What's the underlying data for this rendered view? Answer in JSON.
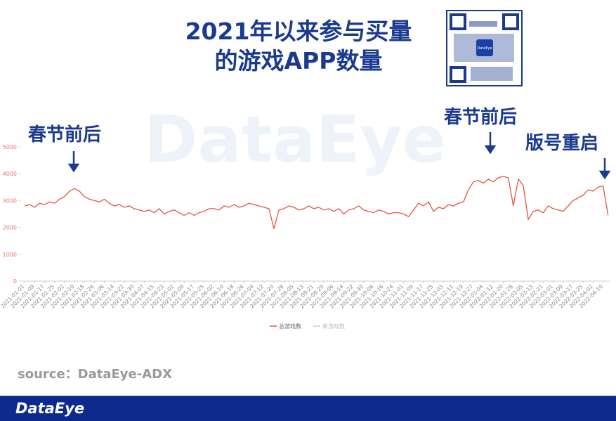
{
  "chart_data": {
    "type": "line",
    "title": [
      "2021年以来参与买量",
      "的游戏APP数量"
    ],
    "watermark": "DataEye",
    "annotations": [
      "春节前后",
      "春节前后",
      "版号重启"
    ],
    "source": "source：DataEye-ADX",
    "footer": "DataEye",
    "qr_label": "DataEye",
    "categories": [
      "2021-01-01",
      null,
      "2021-01-09",
      null,
      "2021-01-17",
      null,
      "2021-01-25",
      null,
      "2021-02-02",
      null,
      "2021-02-10",
      null,
      "2021-02-18",
      null,
      "2021-02-26",
      null,
      "2021-03-06",
      null,
      "2021-03-14",
      null,
      "2021-03-22",
      null,
      "2021-03-30",
      null,
      "2021-04-07",
      null,
      "2021-04-15",
      null,
      "2021-04-23",
      null,
      "2021-05-01",
      null,
      "2021-05-09",
      null,
      "2021-05-17",
      null,
      "2021-05-25",
      null,
      "2021-06-02",
      null,
      "2021-06-10",
      null,
      "2021-06-18",
      null,
      "2021-06-26",
      null,
      "2021-07-04",
      null,
      "2021-07-12",
      null,
      "2021-07-20",
      null,
      "2021-07-28",
      null,
      "2021-08-05",
      null,
      "2021-08-13",
      null,
      "2021-08-21",
      null,
      "2021-08-29",
      null,
      "2021-09-06",
      null,
      "2021-09-14",
      null,
      "2021-09-22",
      null,
      "2021-09-30",
      null,
      "2021-10-08",
      null,
      "2021-10-16",
      null,
      "2021-10-24",
      null,
      "2021-11-01",
      null,
      "2021-11-09",
      null,
      "2021-11-17",
      null,
      "2021-11-25",
      null,
      "2021-12-03",
      null,
      "2021-12-11",
      null,
      "2021-12-19",
      null,
      "2021-12-27",
      null,
      "2022-01-04",
      null,
      "2022-01-12",
      null,
      "2022-01-20",
      null,
      "2022-01-28",
      null,
      "2022-02-05",
      null,
      "2022-02-13",
      null,
      "2022-02-21",
      null,
      "2022-03-01",
      null,
      "2022-03-09",
      null,
      "2022-03-17",
      null,
      "2022-03-25",
      null,
      "2022-04-02",
      null,
      "2022-04-10",
      null
    ],
    "series": [
      {
        "name": "总游戏数",
        "color": "#e8553f",
        "values": [
          2800,
          2850,
          2750,
          2900,
          2850,
          2950,
          2900,
          3050,
          3150,
          3350,
          3450,
          3350,
          3150,
          3050,
          3000,
          2950,
          3050,
          2900,
          2800,
          2850,
          2750,
          2800,
          2700,
          2650,
          2600,
          2650,
          2550,
          2700,
          2500,
          2600,
          2650,
          2550,
          2450,
          2550,
          2450,
          2550,
          2600,
          2700,
          2700,
          2650,
          2800,
          2750,
          2850,
          2750,
          2800,
          2900,
          2850,
          2800,
          2750,
          2700,
          1950,
          2650,
          2700,
          2800,
          2750,
          2650,
          2700,
          2800,
          2700,
          2750,
          2650,
          2700,
          2600,
          2700,
          2500,
          2650,
          2700,
          2800,
          2650,
          2600,
          2550,
          2650,
          2600,
          2500,
          2550,
          2550,
          2500,
          2400,
          2650,
          2900,
          2800,
          2950,
          2600,
          2750,
          2700,
          2850,
          2800,
          2900,
          2950,
          3400,
          3700,
          3750,
          3650,
          3800,
          3700,
          3850,
          3900,
          3850,
          2800,
          3800,
          3550,
          2300,
          2600,
          2650,
          2550,
          2800,
          2700,
          2650,
          2600,
          2800,
          3000,
          3100,
          3200,
          3400,
          3350,
          3500,
          3550,
          2450
        ]
      }
    ],
    "hidden_series": [
      {
        "name": "新游戏数",
        "color": "#cccccc"
      }
    ],
    "ylim": [
      0,
      5000
    ],
    "yticks": [
      0,
      1000,
      2000,
      3000,
      4000,
      5000
    ]
  }
}
